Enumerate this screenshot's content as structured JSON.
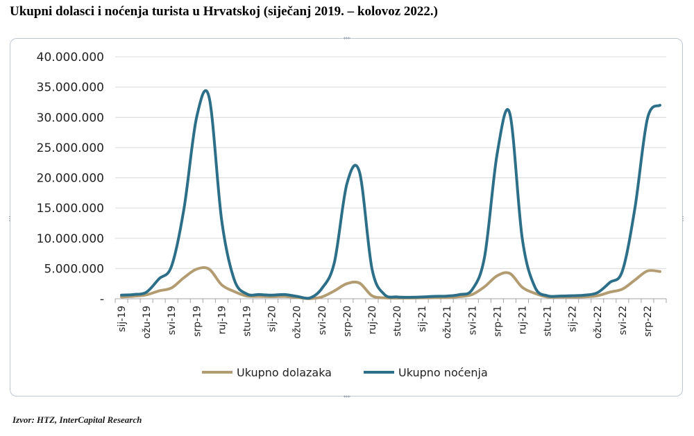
{
  "title": "Ukupni  dolasci i noćenja turista u Hrvatskoj (siječanj 2019. – kolovoz 2022.)",
  "source": "Izvor: HTZ, InterCapital Research",
  "chart_data": {
    "type": "line",
    "ylim": [
      0,
      40000000
    ],
    "y_ticks": [
      {
        "value": 0,
        "label": "-"
      },
      {
        "value": 5000000,
        "label": "5.000.000"
      },
      {
        "value": 10000000,
        "label": "10.000.000"
      },
      {
        "value": 15000000,
        "label": "15.000.000"
      },
      {
        "value": 20000000,
        "label": "20.000.000"
      },
      {
        "value": 25000000,
        "label": "25.000.000"
      },
      {
        "value": 30000000,
        "label": "30.000.000"
      },
      {
        "value": 35000000,
        "label": "35.000.000"
      },
      {
        "value": 40000000,
        "label": "40.000.000"
      }
    ],
    "x": [
      "sij-19",
      "velj-19",
      "ožu-19",
      "tra-19",
      "svi-19",
      "lip-19",
      "srp-19",
      "kol-19",
      "ruj-19",
      "lis-19",
      "stu-19",
      "pro-19",
      "sij-20",
      "velj-20",
      "ožu-20",
      "tra-20",
      "svi-20",
      "lip-20",
      "srp-20",
      "kol-20",
      "ruj-20",
      "lis-20",
      "stu-20",
      "pro-20",
      "sij-21",
      "velj-21",
      "ožu-21",
      "tra-21",
      "svi-21",
      "lip-21",
      "srp-21",
      "kol-21",
      "ruj-21",
      "lis-21",
      "stu-21",
      "pro-21",
      "sij-22",
      "velj-22",
      "ožu-22",
      "tra-22",
      "svi-22",
      "lip-22",
      "srp-22",
      "kol-22"
    ],
    "x_tick_labels": [
      "sij-19",
      "ožu-19",
      "svi-19",
      "srp-19",
      "ruj-19",
      "stu-19",
      "sij-20",
      "ožu-20",
      "svi-20",
      "srp-20",
      "ruj-20",
      "stu-20",
      "sij-21",
      "ožu-21",
      "svi-21",
      "srp-21",
      "ruj-21",
      "stu-21",
      "sij-22",
      "ožu-22",
      "svi-22",
      "srp-22"
    ],
    "series": [
      {
        "name": "Ukupno dolazaka",
        "color": "#b39c72",
        "values": [
          300000,
          420000,
          650000,
          1300000,
          1800000,
          3500000,
          4900000,
          4900000,
          2300000,
          1200000,
          450000,
          400000,
          350000,
          380000,
          220000,
          20000,
          300000,
          1300000,
          2500000,
          2600000,
          500000,
          150000,
          100000,
          120000,
          140000,
          170000,
          180000,
          350000,
          700000,
          2000000,
          3800000,
          4200000,
          1900000,
          900000,
          300000,
          280000,
          270000,
          320000,
          500000,
          1100000,
          1600000,
          3100000,
          4600000,
          4500000
        ]
      },
      {
        "name": "Ukupno noćenja",
        "color": "#2d6f89",
        "values": [
          600000,
          700000,
          1100000,
          3300000,
          5400000,
          15000000,
          30000000,
          33300000,
          13000000,
          3200000,
          800000,
          700000,
          600000,
          700000,
          400000,
          100000,
          1700000,
          6000000,
          19000000,
          21000000,
          5000000,
          700000,
          300000,
          250000,
          300000,
          400000,
          450000,
          700000,
          1500000,
          7000000,
          24000000,
          30700000,
          10000000,
          2000000,
          500000,
          450000,
          500000,
          600000,
          1000000,
          2700000,
          4600000,
          15000000,
          29800000,
          32000000
        ]
      }
    ],
    "legend": "bottom"
  }
}
